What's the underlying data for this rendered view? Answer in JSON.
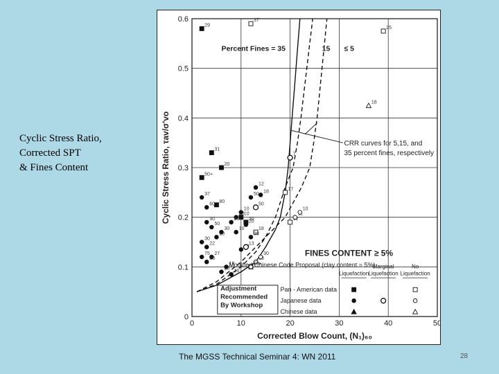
{
  "slide": {
    "title_lines": [
      "Cyclic Stress Ratio,",
      "Corrected SPT",
      "& Fines Content"
    ],
    "footer": "The MGSS Technical Seminar 4: WN 2011",
    "page_number": "28"
  },
  "chart_data": {
    "type": "scatter",
    "xlabel": "Corrected Blow Count, (N₁)₆₀",
    "ylabel": "Cyclic Stress Ratio, τav/σ'vo",
    "xlim": [
      0,
      50
    ],
    "ylim": [
      0,
      0.6
    ],
    "xticks": [
      "0",
      "10",
      "20",
      "30",
      "40",
      "50"
    ],
    "yticks": [
      "0",
      "0.1",
      "0.2",
      "0.3",
      "0.4",
      "0.5",
      "0.6"
    ],
    "grid": true,
    "curves": [
      {
        "label": "35",
        "style": "solid",
        "points": [
          [
            1,
            0.05
          ],
          [
            5,
            0.063
          ],
          [
            10,
            0.09
          ],
          [
            13,
            0.11
          ],
          [
            15,
            0.14
          ],
          [
            17,
            0.175
          ],
          [
            18,
            0.2
          ],
          [
            19,
            0.25
          ],
          [
            19.6,
            0.3
          ],
          [
            20,
            0.35
          ],
          [
            20.4,
            0.4
          ],
          [
            20.8,
            0.45
          ],
          [
            21.2,
            0.5
          ],
          [
            21.6,
            0.55
          ],
          [
            22,
            0.6
          ]
        ]
      },
      {
        "label": "15",
        "style": "dashed",
        "points": [
          [
            1,
            0.05
          ],
          [
            5,
            0.065
          ],
          [
            10,
            0.1
          ],
          [
            13,
            0.13
          ],
          [
            15,
            0.16
          ],
          [
            17,
            0.2
          ],
          [
            19,
            0.26
          ],
          [
            20.6,
            0.3
          ],
          [
            21.5,
            0.35
          ],
          [
            22.2,
            0.4
          ],
          [
            22.8,
            0.45
          ],
          [
            23.4,
            0.5
          ],
          [
            24,
            0.55
          ],
          [
            24.6,
            0.6
          ]
        ]
      },
      {
        "label": "≤ 5",
        "style": "dashed",
        "points": [
          [
            1,
            0.05
          ],
          [
            5,
            0.07
          ],
          [
            10,
            0.11
          ],
          [
            15,
            0.16
          ],
          [
            19,
            0.2
          ],
          [
            22.3,
            0.26
          ],
          [
            24,
            0.3
          ],
          [
            24.8,
            0.35
          ],
          [
            25.5,
            0.4
          ],
          [
            26,
            0.45
          ],
          [
            26.5,
            0.5
          ],
          [
            27,
            0.55
          ],
          [
            27.5,
            0.6
          ]
        ]
      }
    ],
    "annotations": {
      "percent_fines": "Percent Fines = 35",
      "fines_15": "15",
      "fines_5": "≤ 5",
      "crr_lines": [
        "CRR curves for 5,15, and",
        "35 percent fines, respectively"
      ],
      "fines_content": "FINES CONTENT ≥ 5%",
      "chinese_code": "Modified Chinese Code Proposal (clay content = 5%)",
      "workshop_lines": [
        "Adjustment",
        "Recommended",
        "By Workshop"
      ],
      "legend_headers": [
        [
          "Liquefaction"
        ],
        [
          "Marginal",
          "Liquefaction"
        ],
        [
          "No",
          "Liquefaction"
        ]
      ],
      "legend_rows": [
        "Pan - American data",
        "Japanese data",
        "Chinese data"
      ]
    },
    "series": [
      {
        "name": "Pan - American data",
        "liquefaction": "liquefaction",
        "points": [
          [
            2,
            0.58,
            "29"
          ],
          [
            4,
            0.33,
            "31"
          ],
          [
            6,
            0.3,
            "20"
          ],
          [
            2,
            0.28,
            "50+"
          ],
          [
            5,
            0.225,
            "80"
          ],
          [
            10,
            0.2,
            "10"
          ],
          [
            11,
            0.19,
            "30"
          ]
        ]
      },
      {
        "name": "Pan - American data",
        "liquefaction": "none",
        "points": [
          [
            12,
            0.59,
            "37"
          ],
          [
            39,
            0.575,
            "25"
          ],
          [
            12,
            0.1,
            "50"
          ],
          [
            20,
            0.19,
            "12"
          ],
          [
            13,
            0.17,
            "18"
          ],
          [
            19,
            0.25,
            "17"
          ]
        ]
      },
      {
        "name": "Japanese data",
        "liquefaction": "liquefaction",
        "points": [
          [
            2,
            0.24,
            "37"
          ],
          [
            3,
            0.22,
            "60"
          ],
          [
            3,
            0.19,
            "30"
          ],
          [
            4,
            0.18,
            "50"
          ],
          [
            5,
            0.16,
            "20"
          ],
          [
            6,
            0.17,
            "30"
          ],
          [
            2,
            0.15,
            "30"
          ],
          [
            3,
            0.14,
            "22"
          ],
          [
            4,
            0.12,
            "27"
          ],
          [
            3,
            0.11,
            "68"
          ],
          [
            6,
            0.09,
            "20"
          ],
          [
            7,
            0.1,
            "10"
          ],
          [
            8,
            0.085,
            "10"
          ],
          [
            9,
            0.2,
            "20"
          ],
          [
            10,
            0.21,
            "10"
          ],
          [
            11,
            0.185,
            "20"
          ],
          [
            10,
            0.135,
            "13"
          ],
          [
            12,
            0.16,
            "30"
          ],
          [
            13,
            0.26,
            "12"
          ],
          [
            2,
            0.12,
            "75"
          ],
          [
            8,
            0.19,
            "20"
          ],
          [
            9,
            0.17,
            "10"
          ],
          [
            12,
            0.24,
            "50"
          ],
          [
            14,
            0.245,
            "18"
          ]
        ]
      },
      {
        "name": "Japanese data",
        "liquefaction": "marginal",
        "points": [
          [
            13,
            0.22,
            "50"
          ],
          [
            20,
            0.32,
            "7"
          ],
          [
            11,
            0.14,
            "13"
          ]
        ]
      },
      {
        "name": "Japanese data",
        "liquefaction": "none",
        "points": [
          [
            21,
            0.2,
            "11"
          ],
          [
            22,
            0.21,
            "10"
          ],
          [
            13,
            0.11,
            "13"
          ],
          [
            14,
            0.12,
            "30"
          ],
          [
            12,
            0.1,
            "50+"
          ]
        ]
      },
      {
        "name": "Chinese data",
        "liquefaction": "none",
        "points": [
          [
            36,
            0.425,
            "18"
          ]
        ]
      }
    ]
  }
}
